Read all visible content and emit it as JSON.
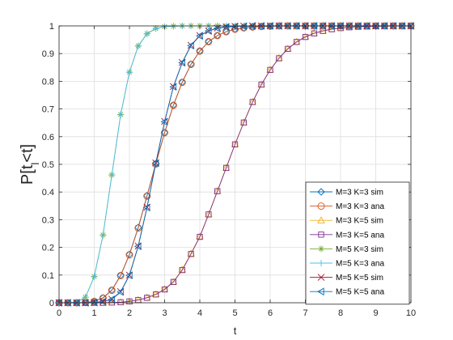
{
  "chart_data": {
    "type": "line",
    "xlabel": "t",
    "ylabel": "P[t",
    "ylabel_sub": "l",
    "ylabel_suffix": "<t]",
    "xlim": [
      0,
      10
    ],
    "ylim": [
      0,
      1
    ],
    "x_ticks": [
      0,
      1,
      2,
      3,
      4,
      5,
      6,
      7,
      8,
      9,
      10
    ],
    "x_tick_labels": [
      "0",
      "1",
      "2",
      "3",
      "4",
      "5",
      "6",
      "7",
      "8",
      "9",
      "10"
    ],
    "y_ticks": [
      0,
      0.1,
      0.2,
      0.3,
      0.4,
      0.5,
      0.6,
      0.7,
      0.8,
      0.9,
      1
    ],
    "y_tick_labels": [
      "0",
      "0.1",
      "0.2",
      "0.3",
      "0.4",
      "0.5",
      "0.6",
      "0.7",
      "0.8",
      "0.9",
      "1"
    ],
    "grid": true,
    "legend_position": "bottom-right",
    "series": [
      {
        "name": "M=3 K=3 sim",
        "color": "#0072bd",
        "marker": "diamond",
        "x": [
          0,
          0.25,
          0.5,
          0.75,
          1,
          1.25,
          1.5,
          1.75,
          2,
          2.25,
          2.5,
          2.75,
          3,
          3.25,
          3.5,
          3.75,
          4,
          4.25,
          4.5,
          4.75,
          5,
          5.25,
          5.5,
          5.75,
          6,
          6.25,
          6.5,
          6.75,
          7,
          7.25,
          7.5,
          7.75,
          8,
          8.25,
          8.5,
          8.75,
          9,
          9.25,
          9.5,
          9.75,
          10
        ],
        "y": [
          0,
          0,
          0,
          0.001,
          0.005,
          0.018,
          0.046,
          0.099,
          0.175,
          0.272,
          0.387,
          0.503,
          0.615,
          0.714,
          0.797,
          0.862,
          0.909,
          0.943,
          0.965,
          0.979,
          0.988,
          0.993,
          0.996,
          0.998,
          0.999,
          1,
          1,
          1,
          1,
          1,
          1,
          1,
          1,
          1,
          1,
          1,
          1,
          1,
          1,
          1,
          1
        ]
      },
      {
        "name": "M=3 K=3 ana",
        "color": "#d95319",
        "marker": "circle",
        "x": [
          0,
          0.25,
          0.5,
          0.75,
          1,
          1.25,
          1.5,
          1.75,
          2,
          2.25,
          2.5,
          2.75,
          3,
          3.25,
          3.5,
          3.75,
          4,
          4.25,
          4.5,
          4.75,
          5,
          5.25,
          5.5,
          5.75,
          6,
          6.25,
          6.5,
          6.75,
          7,
          7.25,
          7.5,
          7.75,
          8,
          8.25,
          8.5,
          8.75,
          9,
          9.25,
          9.5,
          9.75,
          10
        ],
        "y": [
          0,
          0,
          0,
          0.001,
          0.005,
          0.017,
          0.045,
          0.098,
          0.173,
          0.27,
          0.385,
          0.501,
          0.614,
          0.713,
          0.796,
          0.861,
          0.909,
          0.943,
          0.965,
          0.979,
          0.988,
          0.993,
          0.996,
          0.998,
          0.999,
          1,
          1,
          1,
          1,
          1,
          1,
          1,
          1,
          1,
          1,
          1,
          1,
          1,
          1,
          1,
          1
        ]
      },
      {
        "name": "M=3 K=5 sim",
        "color": "#edb120",
        "marker": "triangle-up",
        "x": [
          0,
          0.25,
          0.5,
          0.75,
          1,
          1.25,
          1.5,
          1.75,
          2,
          2.25,
          2.5,
          2.75,
          3,
          3.25,
          3.5,
          3.75,
          4,
          4.25,
          4.5,
          4.75,
          5,
          5.25,
          5.5,
          5.75,
          6,
          6.25,
          6.5,
          6.75,
          7,
          7.25,
          7.5,
          7.75,
          8,
          8.25,
          8.5,
          8.75,
          9,
          9.25,
          9.5,
          9.75,
          10
        ],
        "y": [
          0,
          0,
          0,
          0,
          0,
          0,
          0.001,
          0.002,
          0.005,
          0.01,
          0.019,
          0.031,
          0.05,
          0.076,
          0.12,
          0.178,
          0.24,
          0.32,
          0.404,
          0.488,
          0.573,
          0.652,
          0.726,
          0.789,
          0.842,
          0.884,
          0.918,
          0.943,
          0.961,
          0.974,
          0.983,
          0.989,
          0.993,
          0.996,
          0.997,
          0.998,
          0.999,
          0.999,
          1,
          1,
          1
        ]
      },
      {
        "name": "M=3 K=5 ana",
        "color": "#7e2f8e",
        "marker": "square",
        "x": [
          0,
          0.25,
          0.5,
          0.75,
          1,
          1.25,
          1.5,
          1.75,
          2,
          2.25,
          2.5,
          2.75,
          3,
          3.25,
          3.5,
          3.75,
          4,
          4.25,
          4.5,
          4.75,
          5,
          5.25,
          5.5,
          5.75,
          6,
          6.25,
          6.5,
          6.75,
          7,
          7.25,
          7.5,
          7.75,
          8,
          8.25,
          8.5,
          8.75,
          9,
          9.25,
          9.5,
          9.75,
          10
        ],
        "y": [
          0,
          0,
          0,
          0,
          0,
          0,
          0.001,
          0.002,
          0.005,
          0.01,
          0.018,
          0.03,
          0.048,
          0.075,
          0.118,
          0.176,
          0.238,
          0.319,
          0.403,
          0.487,
          0.572,
          0.651,
          0.725,
          0.788,
          0.841,
          0.883,
          0.917,
          0.942,
          0.96,
          0.973,
          0.982,
          0.988,
          0.992,
          0.995,
          0.997,
          0.998,
          0.999,
          0.999,
          1,
          1,
          1
        ]
      },
      {
        "name": "M=5 K=3 sim",
        "color": "#77ac30",
        "marker": "asterisk",
        "x": [
          0,
          0.25,
          0.5,
          0.75,
          1,
          1.25,
          1.5,
          1.75,
          2,
          2.25,
          2.5,
          2.75,
          3,
          3.25,
          3.5,
          3.75,
          4,
          4.25,
          4.5,
          4.75,
          5,
          5.25,
          5.5,
          5.75,
          6,
          6.25,
          6.5,
          6.75,
          7,
          7.25,
          7.5,
          7.75,
          8,
          8.25,
          8.5,
          8.75,
          9,
          9.25,
          9.5,
          9.75,
          10
        ],
        "y": [
          0,
          0,
          0.002,
          0.02,
          0.095,
          0.245,
          0.462,
          0.68,
          0.833,
          0.928,
          0.972,
          0.991,
          0.997,
          0.999,
          1,
          1,
          1,
          1,
          1,
          1,
          1,
          1,
          1,
          1,
          1,
          1,
          1,
          1,
          1,
          1,
          1,
          1,
          1,
          1,
          1,
          1,
          1,
          1,
          1,
          1,
          1
        ]
      },
      {
        "name": "M=5 K=3 ana",
        "color": "#4dbeee",
        "marker": "plus",
        "x": [
          0,
          0.25,
          0.5,
          0.75,
          1,
          1.25,
          1.5,
          1.75,
          2,
          2.25,
          2.5,
          2.75,
          3,
          3.25,
          3.5,
          3.75,
          4,
          4.25,
          4.5,
          4.75,
          5,
          5.25,
          5.5,
          5.75,
          6,
          6.25,
          6.5,
          6.75,
          7,
          7.25,
          7.5,
          7.75,
          8,
          8.25,
          8.5,
          8.75,
          9,
          9.25,
          9.5,
          9.75,
          10
        ],
        "y": [
          0,
          0,
          0.002,
          0.02,
          0.094,
          0.244,
          0.461,
          0.679,
          0.832,
          0.927,
          0.971,
          0.99,
          0.997,
          0.999,
          1,
          1,
          1,
          1,
          1,
          1,
          1,
          1,
          1,
          1,
          1,
          1,
          1,
          1,
          1,
          1,
          1,
          1,
          1,
          1,
          1,
          1,
          1,
          1,
          1,
          1,
          1
        ]
      },
      {
        "name": "M=5 K=5 sim",
        "color": "#a2142f",
        "marker": "cross",
        "x": [
          0,
          0.25,
          0.5,
          0.75,
          1,
          1.25,
          1.5,
          1.75,
          2,
          2.25,
          2.5,
          2.75,
          3,
          3.25,
          3.5,
          3.75,
          4,
          4.25,
          4.5,
          4.75,
          5,
          5.25,
          5.5,
          5.75,
          6,
          6.25,
          6.5,
          6.75,
          7,
          7.25,
          7.5,
          7.75,
          8,
          8.25,
          8.5,
          8.75,
          9,
          9.25,
          9.5,
          9.75,
          10
        ],
        "y": [
          0,
          0,
          0,
          0,
          0.001,
          0.004,
          0.013,
          0.04,
          0.1,
          0.205,
          0.345,
          0.505,
          0.655,
          0.781,
          0.868,
          0.93,
          0.965,
          0.982,
          0.992,
          0.996,
          0.998,
          0.999,
          1,
          1,
          1,
          1,
          1,
          1,
          1,
          1,
          1,
          1,
          1,
          1,
          1,
          1,
          1,
          1,
          1,
          1,
          1
        ]
      },
      {
        "name": "M=5 K=5 ana",
        "color": "#0072bd",
        "marker": "triangle-left",
        "x": [
          0,
          0.25,
          0.5,
          0.75,
          1,
          1.25,
          1.5,
          1.75,
          2,
          2.25,
          2.5,
          2.75,
          3,
          3.25,
          3.5,
          3.75,
          4,
          4.25,
          4.5,
          4.75,
          5,
          5.25,
          5.5,
          5.75,
          6,
          6.25,
          6.5,
          6.75,
          7,
          7.25,
          7.5,
          7.75,
          8,
          8.25,
          8.5,
          8.75,
          9,
          9.25,
          9.5,
          9.75,
          10
        ],
        "y": [
          0,
          0,
          0,
          0,
          0.001,
          0.004,
          0.012,
          0.039,
          0.099,
          0.204,
          0.344,
          0.504,
          0.654,
          0.78,
          0.867,
          0.929,
          0.964,
          0.982,
          0.991,
          0.996,
          0.998,
          0.999,
          1,
          1,
          1,
          1,
          1,
          1,
          1,
          1,
          1,
          1,
          1,
          1,
          1,
          1,
          1,
          1,
          1,
          1,
          1
        ]
      }
    ]
  }
}
